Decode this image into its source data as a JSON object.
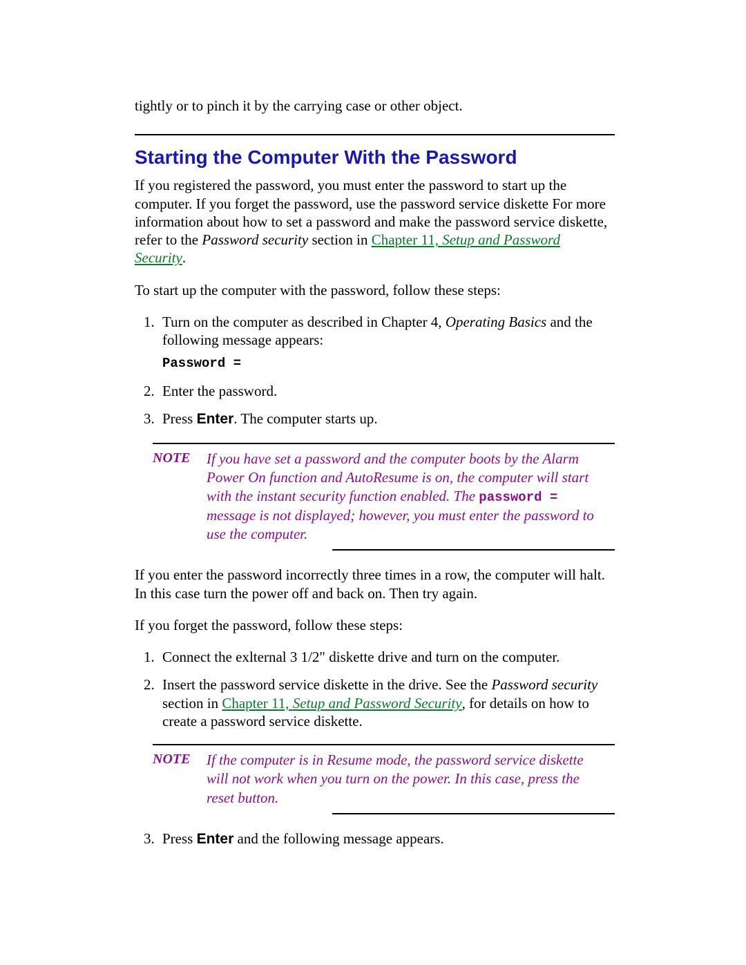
{
  "colors": {
    "heading": "#1a1aa6",
    "link": "#0a7a2a",
    "note": "#8a0f8a",
    "body": "#000000",
    "background": "#ffffff"
  },
  "typography": {
    "body_family": "Times New Roman",
    "body_size_pt": 16,
    "heading_family": "Arial",
    "heading_size_pt": 21,
    "mono_family": "Courier New"
  },
  "lead_fragment": "tightly or to pinch it by the carrying case or other object.",
  "section_title": "Starting the Computer With the Password",
  "intro": {
    "pre": "If you registered the password, you must enter the password to start up the computer. If you forget the password, use the password service diskette For more information about how to set a password and make the password service diskette, refer to the ",
    "italic": "Password security",
    "mid": " section in ",
    "link": "Chapter 11, ",
    "link_italic": "Setup and Password Security",
    "post": "."
  },
  "steps_intro": "To start up the computer with the password, follow these steps:",
  "steps1": {
    "s1_pre": "Turn on the computer as described in Chapter 4, ",
    "s1_italic": "Operating Basics",
    "s1_post": " and the following message appears:",
    "s1_code": "Password =",
    "s2": "Enter the password.",
    "s3_pre": "Press ",
    "s3_bold": "Enter",
    "s3_post": ". The computer starts up."
  },
  "note1": {
    "label": "NOTE",
    "body_pre": "If you have set a password and the computer boots by the Alarm Power On function and AutoResume is on, the computer will start with the instant security function enabled. The ",
    "body_mono": "password =",
    "body_post": " message is not displayed; however, you must enter the password to use the computer."
  },
  "para_incorrect": "If you enter the password incorrectly three times in a row, the computer will halt. In this case turn the power off and back on. Then try again.",
  "forget_intro": "If you forget the password, follow these steps:",
  "steps2": {
    "s1": "Connect the exlternal 3 1/2\" diskette drive and turn on the computer.",
    "s2_pre": "Insert the password service diskette in the drive. See the ",
    "s2_italic": "Password security",
    "s2_mid": " section in ",
    "s2_link": "Chapter 11, ",
    "s2_link_italic": "Setup and Password Security",
    "s2_after_link": ",",
    "s2_post": " for details on how to create a password service diskette."
  },
  "note2": {
    "label": "NOTE",
    "body": "If the computer is in Resume mode, the password service diskette will not work when you turn on the power. In this case, press the reset button."
  },
  "steps3": {
    "s3_pre": "Press ",
    "s3_bold": "Enter",
    "s3_post": " and the following message appears."
  }
}
